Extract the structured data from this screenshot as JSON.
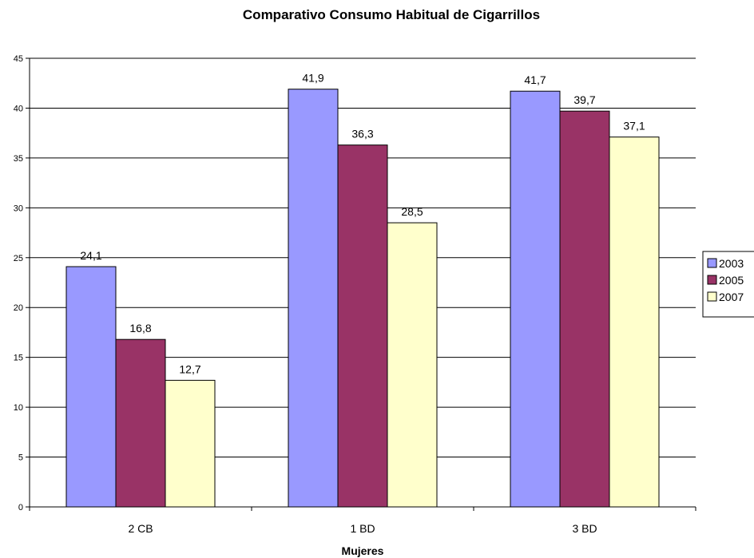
{
  "chart_data": {
    "type": "bar",
    "title": "Comparativo Consumo Habitual de Cigarrillos",
    "xlabel": "Mujeres",
    "ylabel": "",
    "categories": [
      "2 CB",
      "1 BD",
      "3 BD"
    ],
    "series": [
      {
        "name": "2003",
        "values": [
          24.1,
          41.9,
          41.7
        ],
        "labels": [
          "24,1",
          "41,9",
          "41,7"
        ],
        "color": "#9999ff"
      },
      {
        "name": "2005",
        "values": [
          16.8,
          36.3,
          39.7
        ],
        "labels": [
          "16,8",
          "36,3",
          "39,7"
        ],
        "color": "#993366"
      },
      {
        "name": "2007",
        "values": [
          12.7,
          28.5,
          37.1
        ],
        "labels": [
          "12,7",
          "28,5",
          "37,1"
        ],
        "color": "#ffffcc"
      }
    ],
    "ylim": [
      0,
      45
    ],
    "yticks": [
      0,
      5,
      10,
      15,
      20,
      25,
      30,
      35,
      40,
      45
    ],
    "grid": true,
    "legend": "right"
  }
}
